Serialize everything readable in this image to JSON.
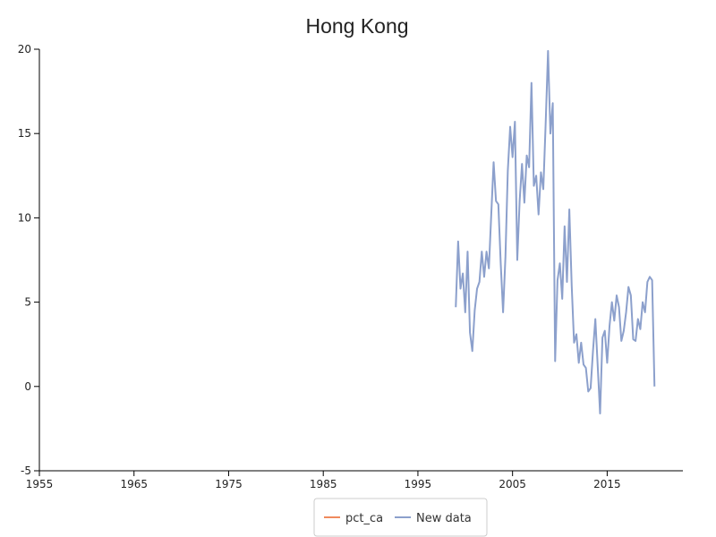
{
  "chart_data": {
    "type": "line",
    "title": "Hong Kong",
    "xlabel": "",
    "ylabel": "",
    "xlim": [
      1955,
      2023
    ],
    "ylim": [
      -5,
      20
    ],
    "xticks": [
      1955,
      1965,
      1975,
      1985,
      1995,
      2005,
      2015
    ],
    "yticks": [
      -5,
      0,
      5,
      10,
      15,
      20
    ],
    "grid": false,
    "legend_position": "bottom",
    "series": [
      {
        "name": "pct_ca",
        "color": "#f08a5d",
        "x": [],
        "values": []
      },
      {
        "name": "New data",
        "color": "#8ca0cc",
        "x": [
          1999.0,
          1999.25,
          1999.5,
          1999.75,
          2000.0,
          2000.25,
          2000.5,
          2000.75,
          2001.0,
          2001.25,
          2001.5,
          2001.75,
          2002.0,
          2002.25,
          2002.5,
          2002.75,
          2003.0,
          2003.25,
          2003.5,
          2003.75,
          2004.0,
          2004.25,
          2004.5,
          2004.75,
          2005.0,
          2005.25,
          2005.5,
          2005.75,
          2006.0,
          2006.25,
          2006.5,
          2006.75,
          2007.0,
          2007.25,
          2007.5,
          2007.75,
          2008.0,
          2008.25,
          2008.5,
          2008.75,
          2009.0,
          2009.25,
          2009.5,
          2009.75,
          2010.0,
          2010.25,
          2010.5,
          2010.75,
          2011.0,
          2011.25,
          2011.5,
          2011.75,
          2012.0,
          2012.25,
          2012.5,
          2012.75,
          2013.0,
          2013.25,
          2013.5,
          2013.75,
          2014.0,
          2014.25,
          2014.5,
          2014.75,
          2015.0,
          2015.25,
          2015.5,
          2015.75,
          2016.0,
          2016.25,
          2016.5,
          2016.75,
          2017.0,
          2017.25,
          2017.5,
          2017.75,
          2018.0,
          2018.25,
          2018.5,
          2018.75,
          2019.0,
          2019.25,
          2019.5,
          2019.75,
          2020.0
        ],
        "values": [
          4.7,
          8.6,
          5.8,
          6.7,
          4.4,
          8.0,
          3.2,
          2.1,
          4.5,
          5.8,
          6.2,
          8.0,
          6.5,
          8.0,
          7.0,
          10.2,
          13.3,
          11.0,
          10.8,
          7.3,
          4.4,
          7.7,
          12.8,
          15.4,
          13.6,
          15.7,
          7.5,
          11.0,
          13.2,
          10.9,
          13.7,
          13.0,
          18.0,
          11.9,
          12.5,
          10.2,
          12.7,
          11.7,
          15.6,
          19.9,
          15.0,
          16.8,
          1.5,
          6.3,
          7.3,
          5.2,
          9.5,
          6.2,
          10.5,
          6.0,
          2.6,
          3.1,
          1.4,
          2.6,
          1.3,
          1.1,
          -0.3,
          -0.1,
          2.1,
          4.0,
          1.2,
          -1.6,
          2.9,
          3.3,
          1.4,
          3.6,
          5.0,
          3.9,
          5.4,
          4.7,
          2.7,
          3.3,
          4.4,
          5.9,
          5.4,
          2.8,
          2.7,
          4.0,
          3.4,
          5.0,
          4.4,
          6.2,
          6.5,
          6.3,
          0.0
        ]
      }
    ]
  }
}
